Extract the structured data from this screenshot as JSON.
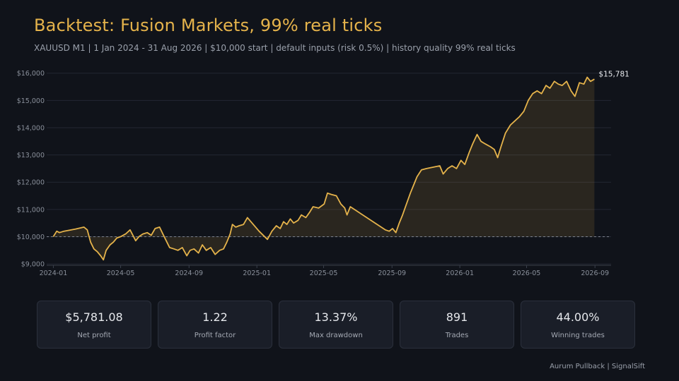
{
  "header": {
    "title": "Backtest: Fusion Markets, 99% real ticks",
    "subtitle": "XAUUSD M1  |  1 Jan 2024 - 31 Aug 2026  |  $10,000 start  |  default inputs (risk 0.5%)  |  history quality 99% real ticks"
  },
  "chart_data": {
    "type": "area",
    "title": "",
    "xlabel": "",
    "ylabel": "",
    "ylim": [
      8950,
      16200
    ],
    "xlim": [
      "2023-12-20",
      "2026-09-30"
    ],
    "grid": true,
    "baseline": 10000,
    "end_label": "$15,781",
    "y_ticks": [
      {
        "value": 9000,
        "label": "$9,000"
      },
      {
        "value": 10000,
        "label": "$10,000"
      },
      {
        "value": 11000,
        "label": "$11,000"
      },
      {
        "value": 12000,
        "label": "$12,000"
      },
      {
        "value": 13000,
        "label": "$13,000"
      },
      {
        "value": 14000,
        "label": "$14,000"
      },
      {
        "value": 15000,
        "label": "$15,000"
      },
      {
        "value": 16000,
        "label": "$16,000"
      }
    ],
    "x_ticks": [
      {
        "value": "2024-01-01",
        "label": "2024-01"
      },
      {
        "value": "2024-05-01",
        "label": "2024-05"
      },
      {
        "value": "2024-09-01",
        "label": "2024-09"
      },
      {
        "value": "2025-01-01",
        "label": "2025-01"
      },
      {
        "value": "2025-05-01",
        "label": "2025-05"
      },
      {
        "value": "2025-09-01",
        "label": "2025-09"
      },
      {
        "value": "2026-01-01",
        "label": "2026-01"
      },
      {
        "value": "2026-05-01",
        "label": "2026-05"
      },
      {
        "value": "2026-09-01",
        "label": "2026-09"
      }
    ],
    "series": [
      {
        "color": "#e5b34b",
        "points": [
          [
            "2024-01-01",
            10000
          ],
          [
            "2024-01-07",
            10200
          ],
          [
            "2024-01-12",
            10150
          ],
          [
            "2024-01-20",
            10200
          ],
          [
            "2024-02-10",
            10280
          ],
          [
            "2024-02-25",
            10350
          ],
          [
            "2024-03-02",
            10250
          ],
          [
            "2024-03-08",
            9800
          ],
          [
            "2024-03-14",
            9550
          ],
          [
            "2024-03-20",
            9450
          ],
          [
            "2024-03-26",
            9300
          ],
          [
            "2024-03-31",
            9150
          ],
          [
            "2024-04-05",
            9500
          ],
          [
            "2024-04-12",
            9700
          ],
          [
            "2024-04-18",
            9800
          ],
          [
            "2024-04-24",
            9950
          ],
          [
            "2024-05-01",
            10000
          ],
          [
            "2024-05-10",
            10100
          ],
          [
            "2024-05-18",
            10250
          ],
          [
            "2024-05-23",
            10050
          ],
          [
            "2024-05-28",
            9850
          ],
          [
            "2024-06-03",
            10000
          ],
          [
            "2024-06-10",
            10100
          ],
          [
            "2024-06-18",
            10150
          ],
          [
            "2024-06-25",
            10050
          ],
          [
            "2024-07-02",
            10300
          ],
          [
            "2024-07-10",
            10350
          ],
          [
            "2024-07-16",
            10100
          ],
          [
            "2024-07-22",
            9850
          ],
          [
            "2024-07-28",
            9600
          ],
          [
            "2024-08-05",
            9550
          ],
          [
            "2024-08-12",
            9500
          ],
          [
            "2024-08-20",
            9600
          ],
          [
            "2024-08-28",
            9300
          ],
          [
            "2024-09-03",
            9500
          ],
          [
            "2024-09-10",
            9550
          ],
          [
            "2024-09-18",
            9400
          ],
          [
            "2024-09-25",
            9700
          ],
          [
            "2024-10-02",
            9500
          ],
          [
            "2024-10-10",
            9600
          ],
          [
            "2024-10-18",
            9350
          ],
          [
            "2024-10-26",
            9500
          ],
          [
            "2024-11-02",
            9550
          ],
          [
            "2024-11-08",
            9800
          ],
          [
            "2024-11-14",
            10100
          ],
          [
            "2024-11-18",
            10450
          ],
          [
            "2024-11-24",
            10350
          ],
          [
            "2024-11-30",
            10400
          ],
          [
            "2024-12-08",
            10450
          ],
          [
            "2024-12-15",
            10700
          ],
          [
            "2025-01-05",
            10200
          ],
          [
            "2025-01-20",
            9900
          ],
          [
            "2025-01-28",
            10200
          ],
          [
            "2025-02-05",
            10400
          ],
          [
            "2025-02-12",
            10300
          ],
          [
            "2025-02-18",
            10550
          ],
          [
            "2025-02-24",
            10450
          ],
          [
            "2025-03-02",
            10650
          ],
          [
            "2025-03-08",
            10500
          ],
          [
            "2025-03-16",
            10600
          ],
          [
            "2025-03-22",
            10800
          ],
          [
            "2025-03-30",
            10700
          ],
          [
            "2025-04-06",
            10900
          ],
          [
            "2025-04-12",
            11100
          ],
          [
            "2025-04-22",
            11050
          ],
          [
            "2025-05-02",
            11200
          ],
          [
            "2025-05-08",
            11600
          ],
          [
            "2025-05-15",
            11550
          ],
          [
            "2025-05-24",
            11500
          ],
          [
            "2025-06-01",
            11200
          ],
          [
            "2025-06-08",
            11050
          ],
          [
            "2025-06-12",
            10800
          ],
          [
            "2025-06-18",
            11100
          ],
          [
            "2025-08-20",
            10250
          ],
          [
            "2025-08-27",
            10200
          ],
          [
            "2025-09-02",
            10300
          ],
          [
            "2025-09-08",
            10150
          ],
          [
            "2025-09-14",
            10500
          ],
          [
            "2025-09-20",
            10800
          ],
          [
            "2025-09-27",
            11200
          ],
          [
            "2025-10-04",
            11600
          ],
          [
            "2025-10-10",
            11900
          ],
          [
            "2025-10-16",
            12200
          ],
          [
            "2025-10-24",
            12450
          ],
          [
            "2025-11-02",
            12500
          ],
          [
            "2025-11-26",
            12600
          ],
          [
            "2025-12-02",
            12300
          ],
          [
            "2025-12-10",
            12500
          ],
          [
            "2025-12-18",
            12600
          ],
          [
            "2025-12-26",
            12500
          ],
          [
            "2026-01-03",
            12800
          ],
          [
            "2026-01-10",
            12650
          ],
          [
            "2026-01-18",
            13100
          ],
          [
            "2026-01-24",
            13400
          ],
          [
            "2026-02-01",
            13750
          ],
          [
            "2026-02-08",
            13500
          ],
          [
            "2026-02-16",
            13400
          ],
          [
            "2026-02-25",
            13300
          ],
          [
            "2026-03-04",
            13200
          ],
          [
            "2026-03-10",
            12900
          ],
          [
            "2026-03-16",
            13300
          ],
          [
            "2026-03-24",
            13800
          ],
          [
            "2026-04-02",
            14100
          ],
          [
            "2026-04-10",
            14250
          ],
          [
            "2026-04-18",
            14400
          ],
          [
            "2026-04-26",
            14600
          ],
          [
            "2026-05-04",
            15000
          ],
          [
            "2026-05-12",
            15250
          ],
          [
            "2026-05-20",
            15350
          ],
          [
            "2026-05-28",
            15250
          ],
          [
            "2026-06-05",
            15550
          ],
          [
            "2026-06-12",
            15450
          ],
          [
            "2026-06-20",
            15700
          ],
          [
            "2026-06-27",
            15600
          ],
          [
            "2026-07-04",
            15550
          ],
          [
            "2026-07-12",
            15700
          ],
          [
            "2026-07-20",
            15350
          ],
          [
            "2026-07-27",
            15150
          ],
          [
            "2026-08-04",
            15650
          ],
          [
            "2026-08-12",
            15600
          ],
          [
            "2026-08-18",
            15850
          ],
          [
            "2026-08-24",
            15700
          ],
          [
            "2026-08-31",
            15781
          ]
        ]
      }
    ]
  },
  "stats": [
    {
      "value": "$5,781.08",
      "label": "Net profit"
    },
    {
      "value": "1.22",
      "label": "Profit factor"
    },
    {
      "value": "13.37%",
      "label": "Max drawdown"
    },
    {
      "value": "891",
      "label": "Trades"
    },
    {
      "value": "44.00%",
      "label": "Winning trades"
    }
  ],
  "footer": {
    "text": "Aurum Pullback  |  SignalSift"
  }
}
